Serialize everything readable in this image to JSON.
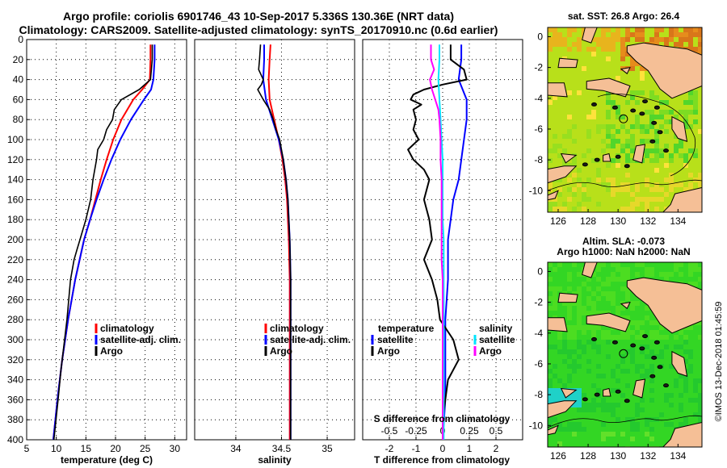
{
  "header": {
    "line1": "Argo profile: coriolis 6901746_43 10-Sep-2017 5.336S 130.36E (NRT data)",
    "line2": "Climatology: CARS2009. Satellite-adjusted climatology: synTS_20170910.nc (0.6d earlier)"
  },
  "colors": {
    "climatology": "#ff0000",
    "satellite": "#0000ff",
    "argo": "#000000",
    "sat_salinity": "#00e5ff",
    "clim_salinity": "#ff00ff",
    "land": "#f5bf96"
  },
  "chart_data": [
    {
      "type": "line",
      "id": "temperature",
      "xlabel": "temperature (deg C)",
      "ylabel": "",
      "xlim": [
        5,
        32
      ],
      "ylim": [
        400,
        0
      ],
      "xticks": [
        5,
        10,
        15,
        20,
        25,
        30
      ],
      "yticks": [
        0,
        20,
        40,
        60,
        80,
        100,
        120,
        140,
        160,
        180,
        200,
        220,
        240,
        260,
        280,
        300,
        320,
        340,
        360,
        380,
        400
      ],
      "legend": [
        "climatology",
        "satellite-adj. clim.",
        "Argo"
      ],
      "series": [
        {
          "name": "climatology",
          "color": "#ff0000",
          "depth": [
            5,
            20,
            40,
            50,
            60,
            80,
            100,
            120,
            140,
            160,
            180,
            200,
            240,
            280,
            320,
            360,
            400
          ],
          "values": [
            25.9,
            25.9,
            25.8,
            24.5,
            23.0,
            21.0,
            19.6,
            18.5,
            17.5,
            16.6,
            15.7,
            14.7,
            13.2,
            12.0,
            11.0,
            10.2,
            9.5
          ]
        },
        {
          "name": "satellite-adj. clim.",
          "color": "#0000ff",
          "depth": [
            5,
            20,
            40,
            50,
            60,
            80,
            100,
            120,
            140,
            160,
            180,
            200,
            240,
            280,
            320,
            360,
            400
          ],
          "values": [
            26.6,
            26.6,
            26.4,
            26.0,
            24.8,
            22.6,
            20.8,
            19.3,
            18.0,
            16.8,
            15.7,
            14.7,
            13.2,
            12.0,
            11.0,
            10.2,
            9.5
          ]
        },
        {
          "name": "Argo",
          "color": "#000000",
          "depth": [
            5,
            20,
            40,
            50,
            60,
            70,
            80,
            90,
            100,
            110,
            120,
            140,
            160,
            180,
            200,
            210,
            220,
            240,
            280,
            320,
            330,
            360,
            400
          ],
          "values": [
            26.2,
            26.2,
            25.9,
            24.0,
            21.0,
            19.8,
            19.5,
            18.5,
            18.0,
            17.0,
            16.8,
            16.2,
            15.8,
            15.0,
            14.0,
            13.5,
            13.0,
            12.4,
            11.8,
            11.0,
            10.8,
            10.3,
            9.6
          ]
        }
      ]
    },
    {
      "type": "line",
      "id": "salinity",
      "xlabel": "salinity",
      "ylabel": "",
      "xlim": [
        33.55,
        35.3
      ],
      "ylim": [
        400,
        0
      ],
      "xticks": [
        34,
        34.5,
        35
      ],
      "legend": [
        "climatology",
        "satellite-adj. clim.",
        "Argo"
      ],
      "series": [
        {
          "name": "climatology",
          "color": "#ff0000",
          "depth": [
            5,
            20,
            40,
            60,
            80,
            100,
            120,
            140,
            160,
            180,
            200,
            240,
            280,
            320,
            360,
            400
          ],
          "values": [
            34.38,
            34.37,
            34.36,
            34.37,
            34.42,
            34.47,
            34.51,
            34.54,
            34.56,
            34.57,
            34.58,
            34.59,
            34.59,
            34.59,
            34.59,
            34.59
          ]
        },
        {
          "name": "satellite-adj. clim.",
          "color": "#0000ff",
          "depth": [
            5,
            20,
            40,
            60,
            80,
            100,
            120,
            140,
            160,
            180,
            200,
            240,
            280,
            320,
            360,
            400
          ],
          "values": [
            34.31,
            34.31,
            34.3,
            34.33,
            34.4,
            34.47,
            34.52,
            34.55,
            34.57,
            34.58,
            34.59,
            34.6,
            34.6,
            34.6,
            34.6,
            34.6
          ]
        },
        {
          "name": "Argo",
          "color": "#000000",
          "depth": [
            5,
            20,
            30,
            40,
            45,
            50,
            60,
            70,
            80,
            90,
            100,
            120,
            140,
            160,
            180,
            200,
            240,
            280,
            320,
            360,
            400
          ],
          "values": [
            34.27,
            34.26,
            34.25,
            34.3,
            34.28,
            34.24,
            34.3,
            34.37,
            34.41,
            34.44,
            34.48,
            34.52,
            34.55,
            34.57,
            34.58,
            34.59,
            34.6,
            34.6,
            34.6,
            34.6,
            34.6
          ]
        }
      ]
    },
    {
      "type": "line",
      "id": "difference",
      "xlabel": "T difference from climatology",
      "xlabel_top": "S difference from climatology",
      "ylabel": "",
      "xlim": [
        -3,
        3
      ],
      "ylim": [
        400,
        0
      ],
      "xticks": [
        -2,
        -1,
        0,
        1,
        2
      ],
      "xticks_salinity": [
        -0.5,
        -0.25,
        0,
        0.25,
        0.5
      ],
      "legend_temperature": [
        "temperature",
        "satellite",
        "Argo"
      ],
      "legend_salinity": [
        "salinity",
        "satellite",
        "Argo"
      ],
      "series": [
        {
          "name": "T satellite",
          "color": "#0000ff",
          "depth": [
            5,
            20,
            40,
            60,
            80,
            100,
            120,
            140,
            160,
            180,
            200,
            240,
            280,
            320,
            360,
            400
          ],
          "values": [
            0.7,
            0.7,
            0.6,
            0.9,
            0.9,
            0.8,
            0.7,
            0.6,
            0.4,
            0.3,
            0.2,
            0.2,
            0.1,
            0.1,
            0.1,
            0.0
          ]
        },
        {
          "name": "T Argo",
          "color": "#000000",
          "depth": [
            5,
            20,
            30,
            40,
            45,
            50,
            55,
            60,
            65,
            70,
            80,
            90,
            100,
            110,
            120,
            130,
            140,
            160,
            180,
            200,
            220,
            240,
            260,
            280,
            300,
            320,
            340,
            360,
            380,
            400
          ],
          "values": [
            0.3,
            0.3,
            0.8,
            0.9,
            0.0,
            -0.7,
            -1.1,
            -1.2,
            -0.8,
            -1.1,
            -1.0,
            -1.1,
            -0.9,
            -1.3,
            -1.1,
            -0.7,
            -0.5,
            -0.7,
            -0.5,
            -0.4,
            -0.7,
            -0.4,
            -0.2,
            -0.1,
            0.4,
            0.6,
            0.2,
            0.1,
            0.0,
            0.0
          ]
        },
        {
          "name": "S satellite",
          "color": "#00e5ff",
          "depth": [
            5,
            20,
            40,
            60,
            80,
            100,
            120,
            140,
            160,
            180,
            200,
            240,
            280,
            320,
            360,
            400
          ],
          "values": [
            -0.03,
            -0.03,
            -0.04,
            -0.03,
            -0.02,
            -0.01,
            0.0,
            0.0,
            0.0,
            0.0,
            0.01,
            0.01,
            0.01,
            0.01,
            0.01,
            0.01
          ]
        },
        {
          "name": "S Argo",
          "color": "#ff00ff",
          "depth": [
            5,
            20,
            30,
            40,
            50,
            60,
            70,
            80,
            100,
            120,
            140,
            160,
            180,
            200,
            220,
            240,
            260,
            280,
            320,
            360,
            400
          ],
          "values": [
            -0.11,
            -0.11,
            -0.08,
            -0.12,
            -0.1,
            -0.07,
            -0.04,
            -0.03,
            -0.02,
            -0.02,
            -0.01,
            -0.01,
            -0.01,
            -0.01,
            -0.01,
            0.0,
            0.0,
            0.0,
            0.0,
            0.0,
            0.0
          ]
        }
      ]
    },
    {
      "type": "heatmap",
      "id": "sst_map",
      "title": "sat. SST: 26.8 Argo: 26.4",
      "xticks": [
        126,
        128,
        130,
        132,
        134
      ],
      "yticks": [
        0,
        -2,
        -4,
        -6,
        -8,
        -10
      ],
      "xlim": [
        125.3,
        135.6
      ],
      "ylim": [
        -11.4,
        0.6
      ],
      "argo_position": [
        130.36,
        -5.336
      ]
    },
    {
      "type": "heatmap",
      "id": "sla_map",
      "title": "Altim. SLA: -0.073",
      "subtitle": "Argo h1000: NaN h2000: NaN",
      "xticks": [
        126,
        128,
        130,
        132,
        134
      ],
      "yticks": [
        0,
        -2,
        -4,
        -6,
        -8,
        -10
      ],
      "xlim": [
        125.3,
        135.6
      ],
      "ylim": [
        -11.4,
        0.6
      ],
      "argo_position": [
        130.36,
        -5.336
      ]
    }
  ],
  "credit": "©IMOS 13-Dec-2018 01:45:59"
}
